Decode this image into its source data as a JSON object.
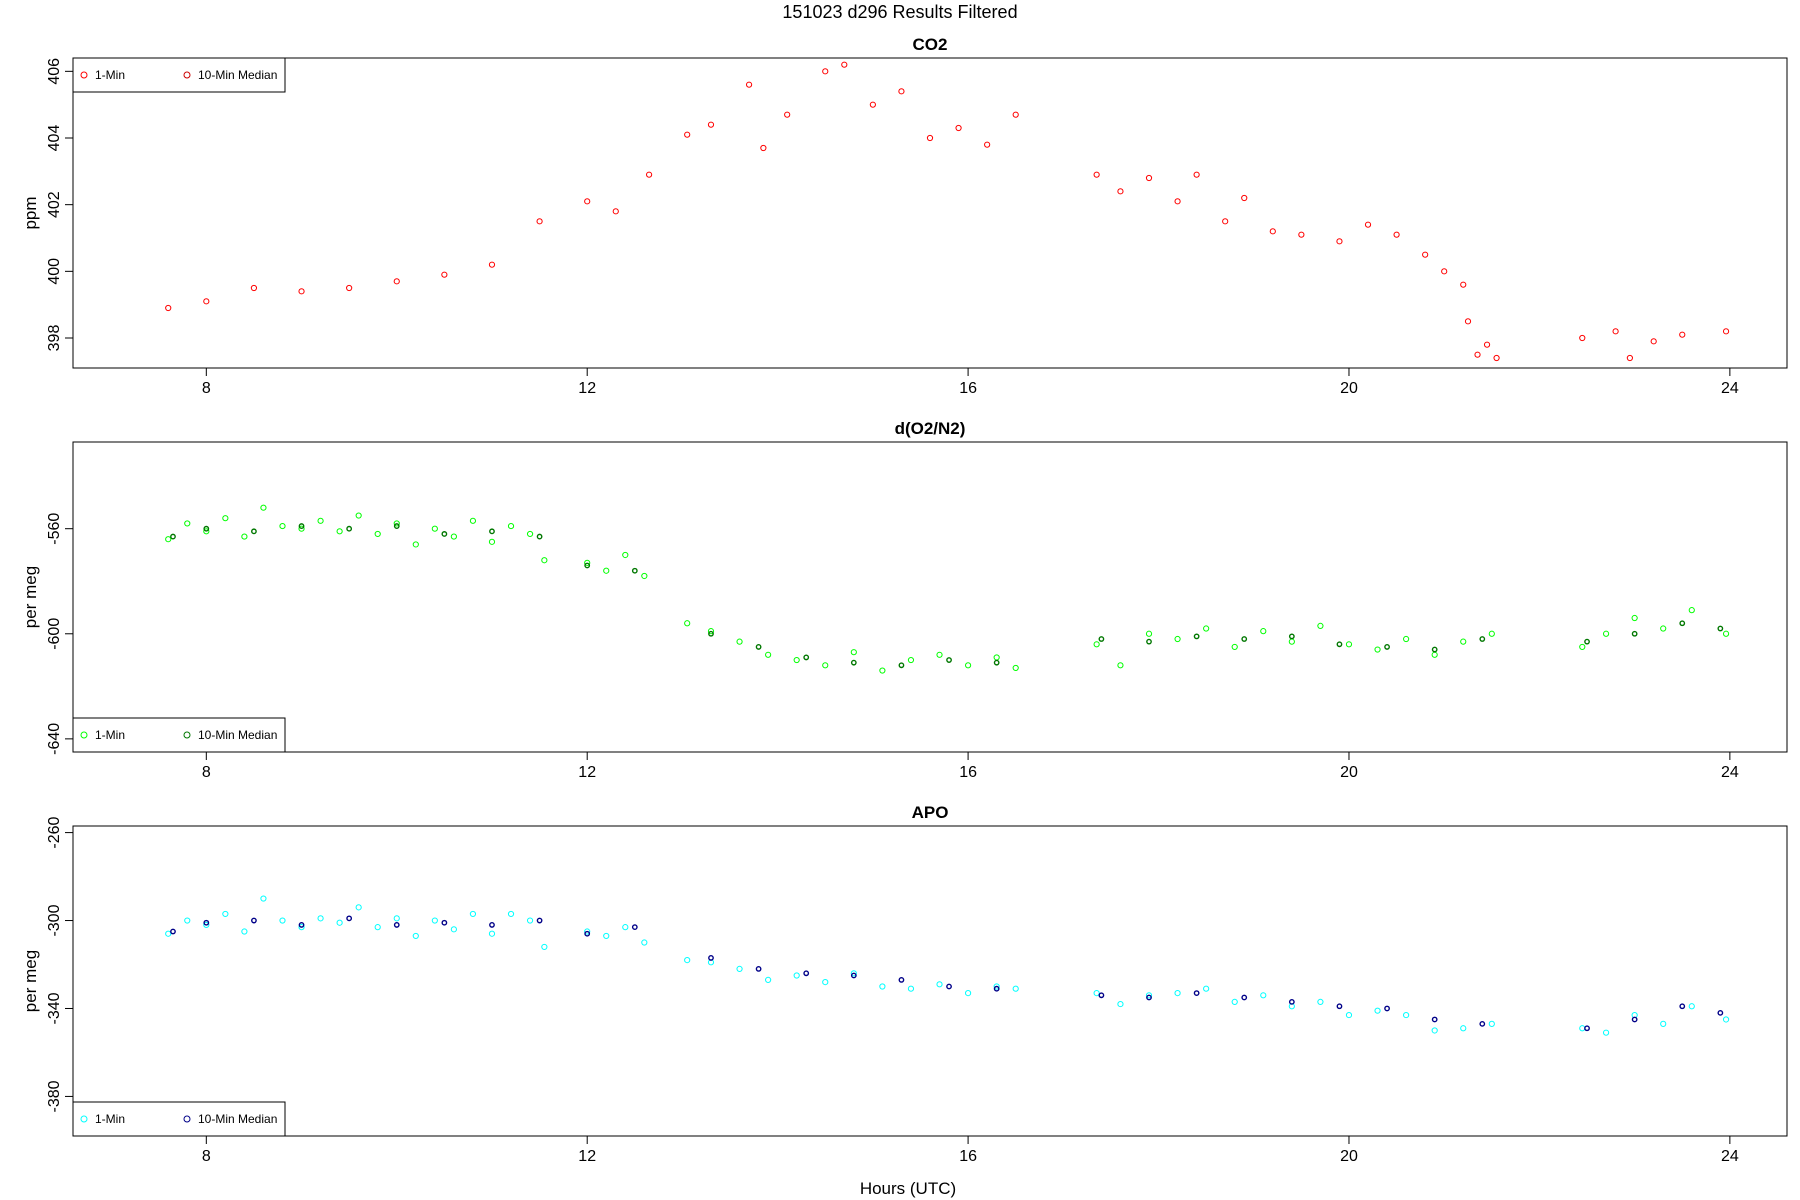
{
  "title": "151023   d296   Results Filtered",
  "xlabel": "Hours (UTC)",
  "chart_data": [
    {
      "type": "scatter",
      "title": "CO2",
      "xlabel": "",
      "ylabel": "ppm",
      "xlim": [
        6.6,
        24.6
      ],
      "ylim": [
        397.1,
        406.4
      ],
      "xticks": [
        8,
        12,
        16,
        20,
        24
      ],
      "yticks": [
        398,
        400,
        402,
        404,
        406
      ],
      "legend_position": "top-left",
      "series": [
        {
          "name": "1-Min",
          "color": "#ff0000",
          "x": [
            7.6,
            8.0,
            8.5,
            9.0,
            9.5,
            10.0,
            10.5,
            11.0,
            11.5,
            12.0,
            12.3,
            12.65,
            13.05,
            13.3,
            13.7,
            13.85,
            14.1,
            14.5,
            14.7,
            15.0,
            15.3,
            15.6,
            15.9,
            16.2,
            16.5,
            17.35,
            17.6,
            17.9,
            18.2,
            18.4,
            18.7,
            18.9,
            19.2,
            19.5,
            19.9,
            20.2,
            20.5,
            20.8,
            21.0,
            21.2,
            21.25,
            21.35,
            21.45,
            21.55,
            22.45,
            22.8,
            22.95,
            23.2,
            23.5,
            23.96
          ],
          "y": [
            398.9,
            399.1,
            399.5,
            399.4,
            399.5,
            399.7,
            399.9,
            400.2,
            401.5,
            402.1,
            401.8,
            402.9,
            404.1,
            404.4,
            405.6,
            403.7,
            404.7,
            406.0,
            406.2,
            405.0,
            405.4,
            404.0,
            404.3,
            403.8,
            404.7,
            402.9,
            402.4,
            402.8,
            402.1,
            402.9,
            401.5,
            402.2,
            401.2,
            401.1,
            400.9,
            401.4,
            401.1,
            400.5,
            400.0,
            399.6,
            398.5,
            397.5,
            397.8,
            397.4,
            398.0,
            398.2,
            397.4,
            397.9,
            398.1,
            398.2
          ]
        },
        {
          "name": "10-Min Median",
          "color": "#cc0000",
          "x": [],
          "y": []
        }
      ]
    },
    {
      "type": "scatter",
      "title": "d(O2/N2)",
      "xlabel": "",
      "ylabel": "per meg",
      "xlim": [
        6.6,
        24.6
      ],
      "ylim": [
        -645,
        -527
      ],
      "xticks": [
        8,
        12,
        16,
        20,
        24
      ],
      "yticks": [
        -560,
        -600,
        -640
      ],
      "legend_position": "bottom-left",
      "series": [
        {
          "name": "1-Min",
          "color": "#00ff00",
          "x": [
            7.6,
            7.8,
            8.0,
            8.2,
            8.4,
            8.6,
            8.8,
            9.0,
            9.2,
            9.4,
            9.6,
            9.8,
            10.0,
            10.2,
            10.4,
            10.6,
            10.8,
            11.0,
            11.2,
            11.4,
            11.55,
            12.0,
            12.2,
            12.4,
            12.6,
            13.05,
            13.3,
            13.6,
            13.9,
            14.2,
            14.5,
            14.8,
            15.1,
            15.4,
            15.7,
            16.0,
            16.3,
            16.5,
            17.35,
            17.6,
            17.9,
            18.2,
            18.5,
            18.8,
            19.1,
            19.4,
            19.7,
            20.0,
            20.3,
            20.6,
            20.9,
            21.2,
            21.5,
            22.45,
            22.7,
            23.0,
            23.3,
            23.6,
            23.96
          ],
          "y": [
            -564,
            -558,
            -561,
            -556,
            -563,
            -552,
            -559,
            -560,
            -557,
            -561,
            -555,
            -562,
            -558,
            -566,
            -560,
            -563,
            -557,
            -565,
            -559,
            -562,
            -572,
            -573,
            -576,
            -570,
            -578,
            -596,
            -599,
            -603,
            -608,
            -610,
            -612,
            -607,
            -614,
            -610,
            -608,
            -612,
            -609,
            -613,
            -604,
            -612,
            -600,
            -602,
            -598,
            -605,
            -599,
            -603,
            -597,
            -604,
            -606,
            -602,
            -608,
            -603,
            -600,
            -605,
            -600,
            -594,
            -598,
            -591,
            -600
          ],
          "sizes": []
        },
        {
          "name": "10-Min Median",
          "color": "#007700",
          "x": [
            7.65,
            8.0,
            8.5,
            9.0,
            9.5,
            10.0,
            10.5,
            11.0,
            11.5,
            12.0,
            12.5,
            13.3,
            13.8,
            14.3,
            14.8,
            15.3,
            15.8,
            16.3,
            17.4,
            17.9,
            18.4,
            18.9,
            19.4,
            19.9,
            20.4,
            20.9,
            21.4,
            22.5,
            23.0,
            23.5,
            23.9
          ],
          "y": [
            -563,
            -560,
            -561,
            -559,
            -560,
            -559,
            -562,
            -561,
            -563,
            -574,
            -576,
            -600,
            -605,
            -609,
            -611,
            -612,
            -610,
            -611,
            -602,
            -603,
            -601,
            -602,
            -601,
            -604,
            -605,
            -606,
            -602,
            -603,
            -600,
            -596,
            -598
          ]
        }
      ]
    },
    {
      "type": "scatter",
      "title": "APO",
      "xlabel": "Hours (UTC)",
      "ylabel": "per meg",
      "xlim": [
        6.6,
        24.6
      ],
      "ylim": [
        -398,
        -257
      ],
      "xticks": [
        8,
        12,
        16,
        20,
        24
      ],
      "yticks": [
        -260,
        -300,
        -340,
        -380
      ],
      "legend_position": "bottom-left",
      "series": [
        {
          "name": "1-Min",
          "color": "#00ffff",
          "x": [
            7.6,
            7.8,
            8.0,
            8.2,
            8.4,
            8.6,
            8.8,
            9.0,
            9.2,
            9.4,
            9.6,
            9.8,
            10.0,
            10.2,
            10.4,
            10.6,
            10.8,
            11.0,
            11.2,
            11.4,
            11.55,
            12.0,
            12.2,
            12.4,
            12.6,
            13.05,
            13.3,
            13.6,
            13.9,
            14.2,
            14.5,
            14.8,
            15.1,
            15.4,
            15.7,
            16.0,
            16.3,
            16.5,
            17.35,
            17.6,
            17.9,
            18.2,
            18.5,
            18.8,
            19.1,
            19.4,
            19.7,
            20.0,
            20.3,
            20.6,
            20.9,
            21.2,
            21.5,
            22.45,
            22.7,
            23.0,
            23.3,
            23.6,
            23.96
          ],
          "y": [
            -306,
            -300,
            -302,
            -297,
            -305,
            -290,
            -300,
            -303,
            -299,
            -301,
            -294,
            -303,
            -299,
            -307,
            -300,
            -304,
            -297,
            -306,
            -297,
            -300,
            -312,
            -305,
            -307,
            -303,
            -310,
            -318,
            -319,
            -322,
            -327,
            -325,
            -328,
            -324,
            -330,
            -331,
            -329,
            -333,
            -330,
            -331,
            -333,
            -338,
            -334,
            -333,
            -331,
            -337,
            -334,
            -339,
            -337,
            -343,
            -341,
            -343,
            -350,
            -349,
            -347,
            -349,
            -351,
            -343,
            -347,
            -339,
            -345
          ]
        },
        {
          "name": "10-Min Median",
          "color": "#000088",
          "x": [
            7.65,
            8.0,
            8.5,
            9.0,
            9.5,
            10.0,
            10.5,
            11.0,
            11.5,
            12.0,
            12.5,
            13.3,
            13.8,
            14.3,
            14.8,
            15.3,
            15.8,
            16.3,
            17.4,
            17.9,
            18.4,
            18.9,
            19.4,
            19.9,
            20.4,
            20.9,
            21.4,
            22.5,
            23.0,
            23.5,
            23.9
          ],
          "y": [
            -305,
            -301,
            -300,
            -302,
            -299,
            -302,
            -301,
            -302,
            -300,
            -306,
            -303,
            -317,
            -322,
            -324,
            -325,
            -327,
            -330,
            -331,
            -334,
            -335,
            -333,
            -335,
            -337,
            -339,
            -340,
            -345,
            -347,
            -349,
            -345,
            -339,
            -342
          ]
        }
      ]
    }
  ]
}
